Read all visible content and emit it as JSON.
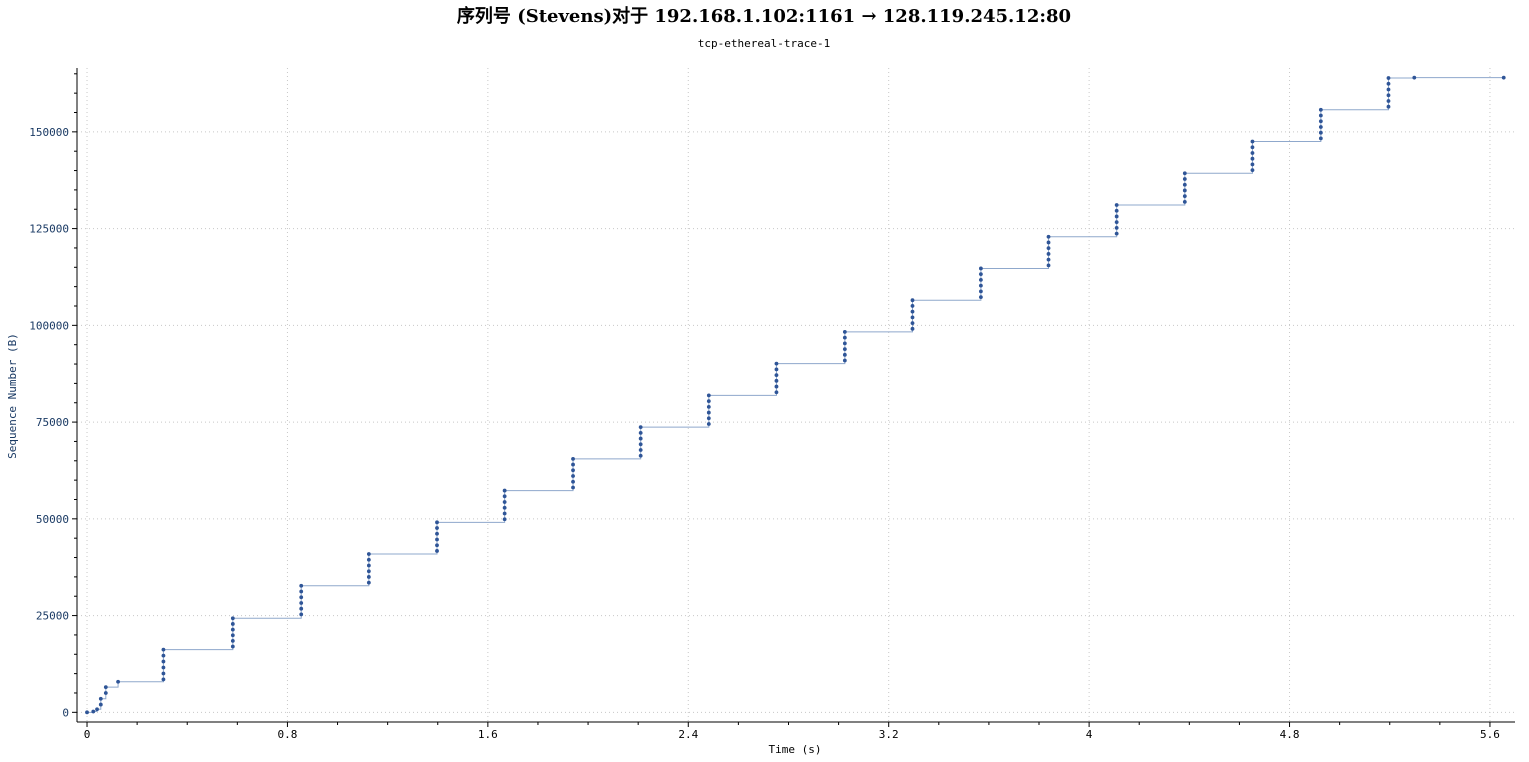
{
  "chart_data": {
    "type": "line",
    "title": "序列号 (Stevens)对于 192.168.1.102:1161 → 128.119.245.12:80",
    "subtitle": "tcp-ethereal-trace-1",
    "xlabel": "Time (s)",
    "ylabel": "Sequence Number (B)",
    "xlim": [
      -0.04,
      5.7
    ],
    "ylim": [
      -2500,
      166500
    ],
    "x_ticks": [
      "0",
      "0.8",
      "1.6",
      "2.4",
      "3.2",
      "4",
      "4.8",
      "5.6"
    ],
    "x_tick_values": [
      0,
      0.8,
      1.6,
      2.4,
      3.2,
      4.0,
      4.8,
      5.6
    ],
    "y_ticks": [
      "0",
      "25000",
      "50000",
      "75000",
      "100000",
      "125000",
      "150000"
    ],
    "y_tick_values": [
      0,
      25000,
      50000,
      75000,
      100000,
      125000,
      150000
    ],
    "grid": true,
    "marker_color": "#2f5597",
    "line_color": "#8fa8cc",
    "bursts": [
      {
        "t": 0.0,
        "y_start": 0,
        "y_end": 0,
        "count": 1
      },
      {
        "t": 0.025,
        "y_start": 200,
        "y_end": 200,
        "count": 1
      },
      {
        "t": 0.04,
        "y_start": 800,
        "y_end": 800,
        "count": 1
      },
      {
        "t": 0.055,
        "y_start": 2000,
        "y_end": 3500,
        "count": 2
      },
      {
        "t": 0.075,
        "y_start": 5000,
        "y_end": 6500,
        "count": 2
      },
      {
        "t": 0.124,
        "y_start": 7900,
        "y_end": 7900,
        "count": 1
      },
      {
        "t": 0.305,
        "y_start": 8500,
        "y_end": 16200,
        "count": 6
      },
      {
        "t": 0.582,
        "y_start": 17000,
        "y_end": 24300,
        "count": 6
      },
      {
        "t": 0.855,
        "y_start": 25300,
        "y_end": 32700,
        "count": 6
      },
      {
        "t": 1.125,
        "y_start": 33500,
        "y_end": 40900,
        "count": 6
      },
      {
        "t": 1.397,
        "y_start": 41700,
        "y_end": 49100,
        "count": 6
      },
      {
        "t": 1.667,
        "y_start": 49900,
        "y_end": 57300,
        "count": 6
      },
      {
        "t": 1.94,
        "y_start": 58100,
        "y_end": 65500,
        "count": 6
      },
      {
        "t": 2.21,
        "y_start": 66300,
        "y_end": 73700,
        "count": 6
      },
      {
        "t": 2.482,
        "y_start": 74500,
        "y_end": 81900,
        "count": 6
      },
      {
        "t": 2.752,
        "y_start": 82700,
        "y_end": 90100,
        "count": 6
      },
      {
        "t": 3.025,
        "y_start": 90900,
        "y_end": 98300,
        "count": 6
      },
      {
        "t": 3.295,
        "y_start": 99100,
        "y_end": 106500,
        "count": 6
      },
      {
        "t": 3.568,
        "y_start": 107300,
        "y_end": 114700,
        "count": 6
      },
      {
        "t": 3.838,
        "y_start": 115500,
        "y_end": 122900,
        "count": 6
      },
      {
        "t": 4.11,
        "y_start": 123700,
        "y_end": 131100,
        "count": 6
      },
      {
        "t": 4.382,
        "y_start": 131900,
        "y_end": 139300,
        "count": 6
      },
      {
        "t": 4.652,
        "y_start": 140100,
        "y_end": 147500,
        "count": 6
      },
      {
        "t": 4.925,
        "y_start": 148300,
        "y_end": 155700,
        "count": 6
      },
      {
        "t": 5.195,
        "y_start": 156500,
        "y_end": 163900,
        "count": 6
      },
      {
        "t": 5.298,
        "y_start": 164000,
        "y_end": 164000,
        "count": 1
      },
      {
        "t": 5.655,
        "y_start": 164000,
        "y_end": 164000,
        "count": 1
      }
    ]
  }
}
